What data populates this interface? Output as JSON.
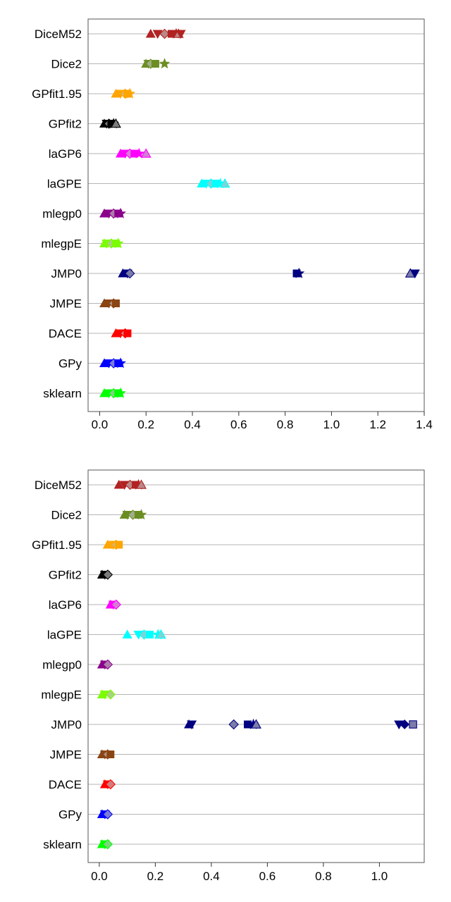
{
  "chart_data": [
    {
      "type": "scatter",
      "title": "",
      "xlabel": "",
      "ylabel": "",
      "xlim": [
        -0.05,
        1.4
      ],
      "xticks": [
        0.0,
        0.2,
        0.4,
        0.6,
        0.8,
        1.0,
        1.2,
        1.4
      ],
      "xtick_labels": [
        "0.0",
        "0.2",
        "0.4",
        "0.6",
        "0.8",
        "1.0",
        "1.2",
        "1.4"
      ],
      "grid": "horizontal",
      "categories": [
        "DiceM52",
        "Dice2",
        "GPfit1.95",
        "GPfit2",
        "laGP6",
        "laGPE",
        "mlegp0",
        "mlegpE",
        "JMP0",
        "JMPE",
        "DACE",
        "GPy",
        "sklearn"
      ],
      "series": [
        {
          "category": "DiceM52",
          "color": "#b22222",
          "values": [
            0.22,
            0.25,
            0.28,
            0.31,
            0.33,
            0.34,
            0.35
          ]
        },
        {
          "category": "Dice2",
          "color": "#6b8e23",
          "values": [
            0.2,
            0.21,
            0.22,
            0.24,
            0.28
          ]
        },
        {
          "category": "GPfit1.95",
          "color": "#ffa500",
          "values": [
            0.07,
            0.09,
            0.11,
            0.12,
            0.13
          ]
        },
        {
          "category": "GPfit2",
          "color": "#000000",
          "values": [
            0.02,
            0.03,
            0.04,
            0.05,
            0.06,
            0.07
          ]
        },
        {
          "category": "laGP6",
          "color": "#ff00ff",
          "values": [
            0.09,
            0.11,
            0.13,
            0.15,
            0.17,
            0.2
          ]
        },
        {
          "category": "laGPE",
          "color": "#00ffff",
          "values": [
            0.44,
            0.46,
            0.48,
            0.5,
            0.52,
            0.54
          ]
        },
        {
          "category": "mlegp0",
          "color": "#8b008b",
          "values": [
            0.02,
            0.04,
            0.06,
            0.08,
            0.09
          ]
        },
        {
          "category": "mlegpE",
          "color": "#7cfc00",
          "values": [
            0.02,
            0.03,
            0.05,
            0.07,
            0.08
          ]
        },
        {
          "category": "JMP0",
          "color": "#000080",
          "values": [
            0.1,
            0.12,
            0.13,
            0.85,
            0.86,
            1.34,
            1.36
          ]
        },
        {
          "category": "JMPE",
          "color": "#8b4513",
          "values": [
            0.02,
            0.04,
            0.06,
            0.07
          ]
        },
        {
          "category": "DACE",
          "color": "#ff0000",
          "values": [
            0.07,
            0.09,
            0.11,
            0.12
          ]
        },
        {
          "category": "GPy",
          "color": "#0000ff",
          "values": [
            0.02,
            0.04,
            0.06,
            0.08,
            0.09
          ]
        },
        {
          "category": "sklearn",
          "color": "#00ff00",
          "values": [
            0.02,
            0.04,
            0.06,
            0.08,
            0.09
          ]
        }
      ]
    },
    {
      "type": "scatter",
      "title": "",
      "xlabel": "",
      "ylabel": "",
      "xlim": [
        -0.04,
        1.16
      ],
      "xticks": [
        0.0,
        0.2,
        0.4,
        0.6,
        0.8,
        1.0
      ],
      "xtick_labels": [
        "0.0",
        "0.2",
        "0.4",
        "0.6",
        "0.8",
        "1.0"
      ],
      "grid": "horizontal",
      "categories": [
        "DiceM52",
        "Dice2",
        "GPfit1.95",
        "GPfit2",
        "laGP6",
        "laGPE",
        "mlegp0",
        "mlegpE",
        "JMP0",
        "JMPE",
        "DACE",
        "GPy",
        "sklearn"
      ],
      "series": [
        {
          "category": "DiceM52",
          "color": "#b22222",
          "values": [
            0.07,
            0.09,
            0.11,
            0.13,
            0.14,
            0.15
          ]
        },
        {
          "category": "Dice2",
          "color": "#6b8e23",
          "values": [
            0.09,
            0.1,
            0.12,
            0.14,
            0.15
          ]
        },
        {
          "category": "GPfit1.95",
          "color": "#ffa500",
          "values": [
            0.03,
            0.05,
            0.06,
            0.07
          ]
        },
        {
          "category": "GPfit2",
          "color": "#000000",
          "values": [
            0.01,
            0.02,
            0.03
          ]
        },
        {
          "category": "laGP6",
          "color": "#ff00ff",
          "values": [
            0.04,
            0.05,
            0.06
          ]
        },
        {
          "category": "laGPE",
          "color": "#00ffff",
          "values": [
            0.1,
            0.14,
            0.16,
            0.18,
            0.21,
            0.22
          ]
        },
        {
          "category": "mlegp0",
          "color": "#8b008b",
          "values": [
            0.01,
            0.02,
            0.03
          ]
        },
        {
          "category": "mlegpE",
          "color": "#7cfc00",
          "values": [
            0.01,
            0.02,
            0.04
          ]
        },
        {
          "category": "JMP0",
          "color": "#000080",
          "values": [
            0.32,
            0.33,
            0.48,
            0.53,
            0.55,
            0.56,
            1.07,
            1.09,
            1.12
          ]
        },
        {
          "category": "JMPE",
          "color": "#8b4513",
          "values": [
            0.01,
            0.02,
            0.03,
            0.04
          ]
        },
        {
          "category": "DACE",
          "color": "#ff0000",
          "values": [
            0.02,
            0.03,
            0.04
          ]
        },
        {
          "category": "GPy",
          "color": "#0000ff",
          "values": [
            0.01,
            0.02,
            0.03
          ]
        },
        {
          "category": "sklearn",
          "color": "#00ff00",
          "values": [
            0.01,
            0.02,
            0.03
          ]
        }
      ]
    }
  ]
}
